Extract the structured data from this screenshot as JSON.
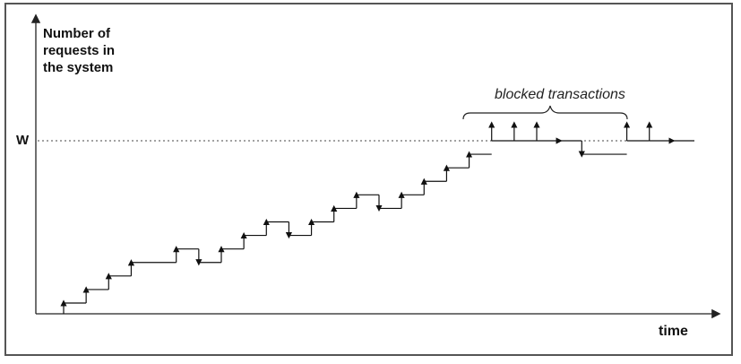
{
  "chart_data": {
    "type": "line",
    "title": "",
    "ylabel_lines": [
      "Number of",
      "requests in",
      "the system"
    ],
    "xlabel": "time",
    "w_label": "W",
    "annotation": "blocked transactions",
    "steps": [
      {
        "t": 0,
        "dir": "up"
      },
      {
        "t": 1,
        "dir": "up"
      },
      {
        "t": 2,
        "dir": "up"
      },
      {
        "t": 3,
        "dir": "up"
      },
      {
        "t": 5,
        "dir": "down"
      },
      {
        "t": 6,
        "dir": "up"
      },
      {
        "t": 7,
        "dir": "up"
      },
      {
        "t": 8,
        "dir": "up"
      },
      {
        "t": 9,
        "dir": "down"
      },
      {
        "t": 10,
        "dir": "up"
      },
      {
        "t": 11,
        "dir": "up"
      },
      {
        "t": 12,
        "dir": "up"
      },
      {
        "t": 13,
        "dir": "down"
      },
      {
        "t": 14,
        "dir": "up"
      },
      {
        "t": 15,
        "dir": "up"
      },
      {
        "t": 16,
        "dir": "up"
      },
      {
        "t": 17,
        "dir": "up"
      },
      {
        "t": 18,
        "dir": "up"
      },
      {
        "t": 19,
        "dir": "blocked"
      },
      {
        "t": 20,
        "dir": "blocked"
      },
      {
        "t": 21,
        "dir": "blocked"
      },
      {
        "t": 22,
        "dir": "down"
      },
      {
        "t": 23,
        "dir": "up"
      },
      {
        "t": 25,
        "dir": "blocked"
      },
      {
        "t": 26,
        "dir": "blocked"
      },
      {
        "t": 27,
        "dir": "down"
      }
    ],
    "levels": [
      0,
      1,
      2,
      3,
      4,
      3,
      4,
      5,
      6,
      5,
      6,
      7,
      8,
      7,
      8,
      9,
      10,
      11,
      12,
      12,
      12,
      12,
      11,
      12,
      12,
      12,
      11
    ],
    "xlim": [
      0,
      28
    ],
    "ylim": [
      0,
      12
    ],
    "w_level": 12,
    "grid": false
  }
}
